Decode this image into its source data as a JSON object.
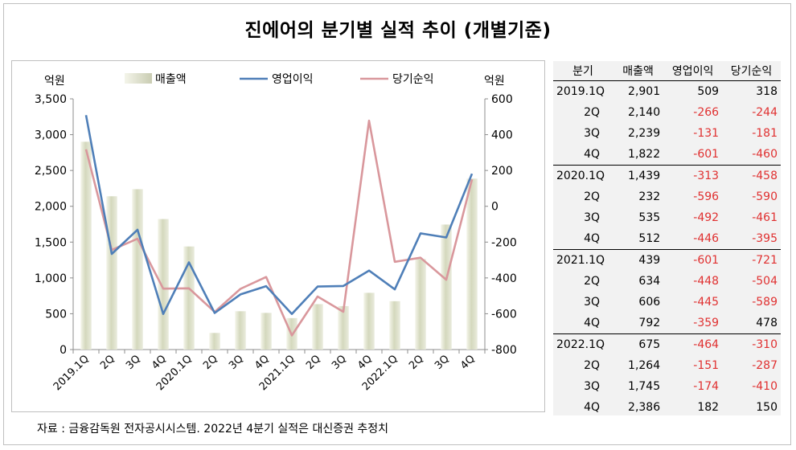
{
  "title": "진에어의 분기별 실적 추이 (개별기준)",
  "source": "자료 : 금융감독원 전자공시시스템. 2022년 4분기 실적은 대신증권 추정치",
  "colors": {
    "bar": "#e4e6d2",
    "op": "#4f7fb8",
    "net": "#d9979c",
    "neg": "#e03030"
  },
  "chart_data": {
    "type": "bar+line",
    "categories": [
      "2019.1Q",
      "2Q",
      "3Q",
      "4Q",
      "2020.1Q",
      "2Q",
      "3Q",
      "4Q",
      "2021.1Q",
      "2Q",
      "3Q",
      "4Q",
      "2022.1Q",
      "2Q",
      "3Q",
      "4Q"
    ],
    "series": [
      {
        "name": "매출액",
        "type": "bar",
        "axis": "left",
        "values": [
          2901,
          2140,
          2239,
          1822,
          1439,
          232,
          535,
          512,
          439,
          634,
          606,
          792,
          675,
          1264,
          1745,
          2386
        ]
      },
      {
        "name": "영업이익",
        "type": "line",
        "axis": "right",
        "values": [
          509,
          -266,
          -131,
          -601,
          -313,
          -596,
          -492,
          -446,
          -601,
          -448,
          -445,
          -359,
          -464,
          -151,
          -174,
          182
        ]
      },
      {
        "name": "당기순익",
        "type": "line",
        "axis": "right",
        "values": [
          318,
          -244,
          -181,
          -460,
          -458,
          -590,
          -461,
          -395,
          -721,
          -504,
          -589,
          478,
          -310,
          -287,
          -410,
          150
        ]
      }
    ],
    "left_axis": {
      "label": "억원",
      "min": 0,
      "max": 3500,
      "ticks": [
        "0",
        "500",
        "1,000",
        "1,500",
        "2,000",
        "2,500",
        "3,000",
        "3,500"
      ]
    },
    "right_axis": {
      "label": "억원",
      "min": -800,
      "max": 600,
      "ticks": [
        "-800",
        "-600",
        "-400",
        "-200",
        "0",
        "200",
        "400",
        "600"
      ]
    }
  },
  "table": {
    "headers": [
      "분기",
      "매출액",
      "영업이익",
      "당기순익"
    ],
    "rows": [
      [
        "2019.1Q",
        "2,901",
        "509",
        "318"
      ],
      [
        "2Q",
        "2,140",
        "-266",
        "-244"
      ],
      [
        "3Q",
        "2,239",
        "-131",
        "-181"
      ],
      [
        "4Q",
        "1,822",
        "-601",
        "-460"
      ],
      [
        "2020.1Q",
        "1,439",
        "-313",
        "-458"
      ],
      [
        "2Q",
        "232",
        "-596",
        "-590"
      ],
      [
        "3Q",
        "535",
        "-492",
        "-461"
      ],
      [
        "4Q",
        "512",
        "-446",
        "-395"
      ],
      [
        "2021.1Q",
        "439",
        "-601",
        "-721"
      ],
      [
        "2Q",
        "634",
        "-448",
        "-504"
      ],
      [
        "3Q",
        "606",
        "-445",
        "-589"
      ],
      [
        "4Q",
        "792",
        "-359",
        "478"
      ],
      [
        "2022.1Q",
        "675",
        "-464",
        "-310"
      ],
      [
        "2Q",
        "1,264",
        "-151",
        "-287"
      ],
      [
        "3Q",
        "1,745",
        "-174",
        "-410"
      ],
      [
        "4Q",
        "2,386",
        "182",
        "150"
      ]
    ]
  }
}
